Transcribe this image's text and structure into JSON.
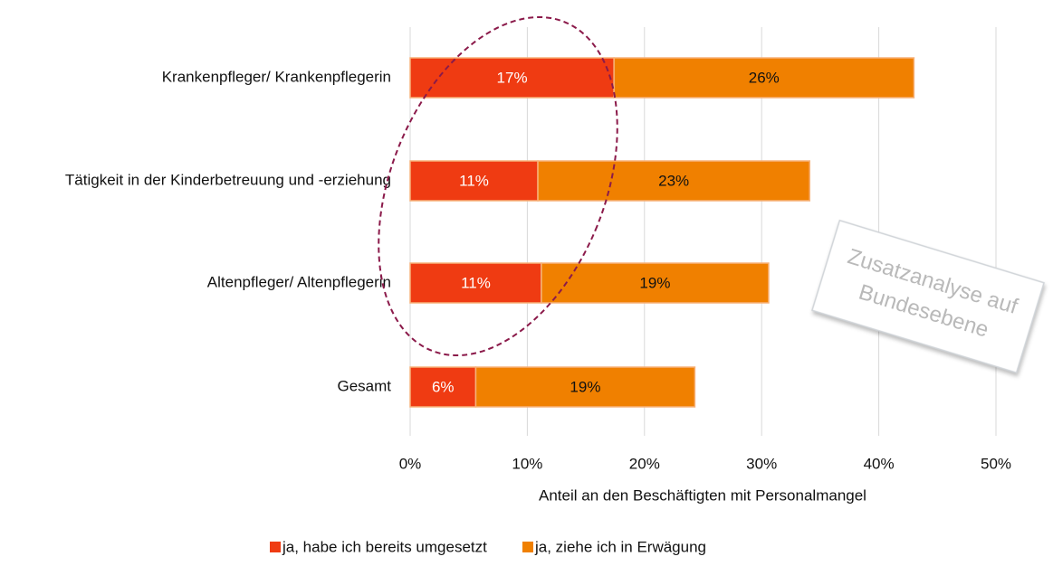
{
  "chart_data": {
    "type": "stacked-bar-horizontal",
    "categories": [
      "Krankenpfleger/ Krankenpflegerin",
      "Tätigkeit in der Kinderbetreuung und -erziehung",
      "Altenpfleger/ Altenpflegerin",
      "Gesamt"
    ],
    "series": [
      {
        "name": "ja, habe ich bereits umgesetzt",
        "color": "#ef3b12",
        "values": [
          17.4,
          10.9,
          11.2,
          5.6
        ],
        "value_labels": [
          "17%",
          "11%",
          "11%",
          "6%"
        ]
      },
      {
        "name": "ja, ziehe ich in Erwägung",
        "color": "#f08000",
        "values": [
          25.6,
          23.2,
          19.4,
          18.7
        ],
        "value_labels": [
          "26%",
          "23%",
          "19%",
          "19%"
        ]
      }
    ],
    "xlim": [
      0,
      50
    ],
    "xticks": [
      {
        "value": 0,
        "label": "0%"
      },
      {
        "value": 10,
        "label": "10%"
      },
      {
        "value": 20,
        "label": "20%"
      },
      {
        "value": 30,
        "label": "30%"
      },
      {
        "value": 40,
        "label": "40%"
      },
      {
        "value": 50,
        "label": "50%"
      }
    ],
    "x_label": "Anteil an den Beschäftigten mit Personalmangel",
    "grid": true,
    "legend": "bottom",
    "annotation": [
      "Zusatzanalyse auf",
      "Bundesebene"
    ]
  }
}
